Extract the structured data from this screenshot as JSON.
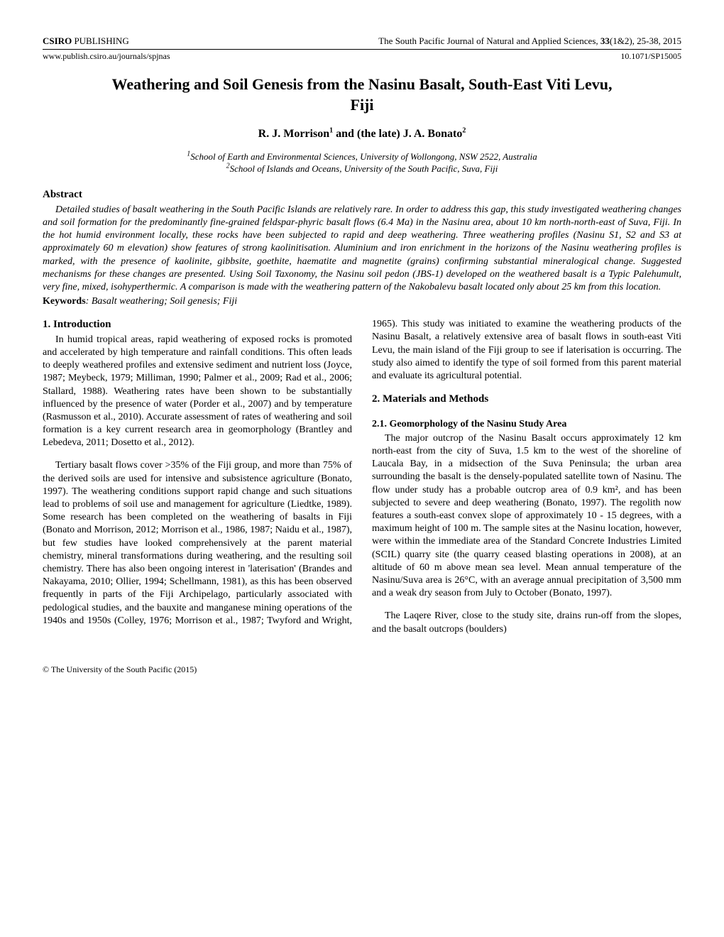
{
  "header": {
    "publisher_bold": "CSIRO",
    "publisher_rest": " PUBLISHING",
    "journal_ref": "The South Pacific Journal of Natural and Applied Sciences, ",
    "issue_bold": "33",
    "issue_rest": "(1&2), 25-38, 2015",
    "url": "www.publish.csiro.au/journals/spjnas",
    "doi": "10.1071/SP15005"
  },
  "title": "Weathering and Soil Genesis from the Nasinu Basalt, South-East Viti Levu, Fiji",
  "authors_line_prefix": "R. J. Morrison",
  "authors_sup1": "1",
  "authors_line_mid": " and (the late) J. A. Bonato",
  "authors_sup2": "2",
  "affiliations": {
    "aff1_sup": "1",
    "aff1": "School of Earth and Environmental Sciences, University of Wollongong, NSW 2522, Australia",
    "aff2_sup": "2",
    "aff2": "School of Islands and Oceans, University of the South Pacific, Suva, Fiji"
  },
  "abstract_heading": "Abstract",
  "abstract_text": "Detailed studies of basalt weathering in the South Pacific Islands are relatively rare. In order to address this gap, this study investigated weathering changes and soil formation for the predominantly fine-grained feldspar-phyric basalt flows (6.4 Ma) in the Nasinu area, about 10 km north-north-east of Suva, Fiji. In the hot humid environment locally, these rocks have been subjected to rapid and deep weathering. Three weathering profiles (Nasinu S1, S2 and S3 at approximately 60 m elevation) show features of strong kaolinitisation. Aluminium and iron enrichment in the horizons of the Nasinu weathering profiles is marked, with the presence of kaolinite, gibbsite, goethite, haematite and magnetite (grains) confirming substantial mineralogical change. Suggested mechanisms for these changes are presented. Using Soil Taxonomy, the Nasinu soil pedon (JBS-1) developed on the weathered basalt is a Typic Palehumult, very fine, mixed, isohyperthermic. A comparison is made with the weathering pattern of the Nakobalevu basalt located only about 25 km from this location.",
  "keywords_label": "Keywords",
  "keywords_text": ": Basalt weathering; Soil genesis; Fiji",
  "intro_heading": "1. Introduction",
  "intro_p1": "In humid tropical areas, rapid weathering of exposed rocks is promoted and accelerated by high temperature and rainfall conditions. This often leads to deeply weathered profiles and extensive sediment and nutrient loss (Joyce, 1987; Meybeck, 1979; Milliman, 1990; Palmer et al., 2009; Rad et al., 2006; Stallard, 1988). Weathering rates have been shown to be substantially influenced by the presence of water (Porder et al., 2007) and by temperature (Rasmusson et al., 2010). Accurate assessment of rates of weathering and soil formation is a key current research area in geomorphology (Brantley and Lebedeva, 2011; Dosetto et al., 2012).",
  "intro_p2": "Tertiary basalt flows cover >35% of the Fiji group, and more than 75% of the derived soils are used for intensive and subsistence agriculture (Bonato, 1997). The weathering conditions support rapid change and such situations lead to problems of soil use and management for agriculture (Liedtke, 1989). Some research has been completed on the weathering of basalts in Fiji (Bonato and Morrison, 2012; Morrison et al., 1986, 1987; Naidu et al., 1987), but few studies have looked comprehensively at the parent material chemistry, mineral transformations during weathering, and the resulting soil chemistry. There has also been ongoing interest in 'laterisation' (Brandes and Nakayama, 2010; Ollier, 1994; Schellmann, 1981), as this has been observed frequently in parts of the Fiji Archipelago, particularly associated with pedological studies, and the bauxite and manganese mining operations of the 1940s and 1950s (Colley, 1976; Morrison et al., 1987; Twyford and Wright, 1965). This study was initiated to examine the weathering products of the Nasinu Basalt, a relatively extensive area of basalt flows in south-east Viti Levu, the main island of the Fiji group to see if laterisation is occurring. The study also aimed to identify the type of soil formed from this parent material and evaluate its agricultural potential.",
  "methods_heading": "2. Materials and Methods",
  "geomorph_heading": "2.1. Geomorphology of the Nasinu Study Area",
  "geomorph_p1": "The major outcrop of the Nasinu Basalt occurs approximately 12 km north-east from the city of Suva, 1.5 km to the west of the shoreline of Laucala Bay, in a midsection of the Suva Peninsula; the urban area surrounding the basalt is the densely-populated satellite town of Nasinu. The flow under study has a probable outcrop area of 0.9 km², and has been subjected to severe and deep weathering (Bonato, 1997). The regolith now features a south-east convex slope of approximately 10 - 15 degrees, with a maximum height of 100 m. The sample sites at the Nasinu location, however, were within the immediate area of the Standard Concrete Industries Limited (SCIL) quarry site (the quarry ceased blasting operations in 2008), at an altitude of 60 m above mean sea level. Mean annual temperature of the Nasinu/Suva area is 26°C, with an average annual precipitation of 3,500 mm and a weak dry season from July to October (Bonato, 1997).",
  "geomorph_p2": "The Laqere River, close to the study site, drains run-off from the slopes, and the basalt outcrops (boulders)",
  "footer": "© The University of the South Pacific (2015)"
}
